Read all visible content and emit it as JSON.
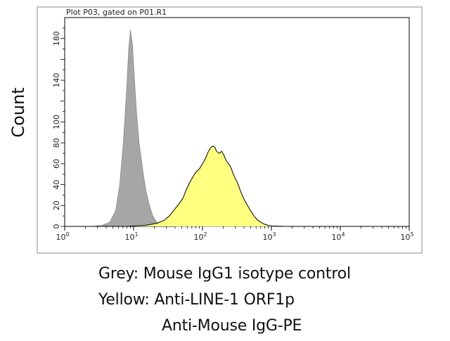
{
  "chart_data": {
    "type": "area",
    "title": "Plot P03, gated on P01.R1",
    "ylabel": "Count",
    "xscale": "log",
    "xlim": [
      1,
      100000
    ],
    "ylim": [
      0,
      200
    ],
    "xticks": [
      {
        "value": 1,
        "base": "10",
        "exp": "0"
      },
      {
        "value": 10,
        "base": "10",
        "exp": "1"
      },
      {
        "value": 100,
        "base": "10",
        "exp": "2"
      },
      {
        "value": 1000,
        "base": "10",
        "exp": "3"
      },
      {
        "value": 10000,
        "base": "10",
        "exp": "4"
      },
      {
        "value": 100000,
        "base": "10",
        "exp": "5"
      }
    ],
    "yticks": [
      0,
      20,
      40,
      60,
      80,
      100,
      140,
      180
    ],
    "grid": false,
    "series": [
      {
        "color": "#a6a6a6",
        "x": [
          1,
          2.5,
          3.5,
          4.5,
          5.5,
          6.3,
          7.1,
          7.9,
          8.5,
          9.0,
          9.6,
          10.3,
          11.0,
          12.0,
          13.5,
          15,
          17,
          19,
          21,
          24,
          30,
          40,
          100000
        ],
        "y": [
          0,
          0,
          1,
          4,
          15,
          40,
          80,
          130,
          170,
          188,
          175,
          140,
          110,
          80,
          55,
          35,
          20,
          10,
          5,
          2,
          1,
          0,
          0
        ]
      },
      {
        "color": "#ffff80",
        "x": [
          1,
          8,
          15,
          22,
          28,
          33,
          40,
          45,
          52,
          58,
          65,
          72,
          80,
          90,
          100,
          110,
          120,
          130,
          140,
          150,
          160,
          175,
          190,
          205,
          220,
          240,
          260,
          280,
          300,
          330,
          360,
          400,
          450,
          500,
          560,
          630,
          700,
          800,
          900,
          1000,
          1200,
          1500,
          2000,
          100000
        ],
        "y": [
          0,
          0,
          1,
          3,
          6,
          10,
          17,
          21,
          27,
          35,
          42,
          47,
          52,
          55,
          60,
          65,
          71,
          75,
          77,
          76,
          72,
          70,
          72,
          68,
          63,
          60,
          56,
          50,
          46,
          40,
          33,
          26,
          20,
          15,
          10,
          6,
          4,
          2,
          1,
          0.5,
          0.3,
          0.1,
          0,
          0
        ]
      }
    ]
  },
  "captions": {
    "line1": "Grey: Mouse IgG1 isotype control",
    "line2": "Yellow: Anti-LINE-1 ORF1p",
    "line3": "Anti-Mouse IgG-PE"
  }
}
